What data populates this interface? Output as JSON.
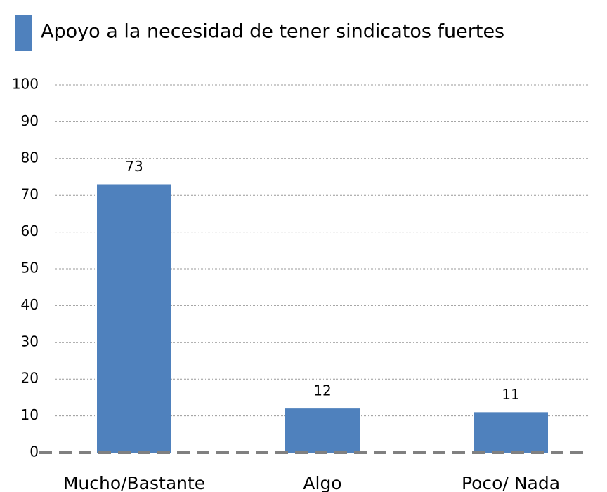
{
  "chart_data": {
    "type": "bar",
    "title": "Apoyo a la necesidad de tener sindicatos fuertes",
    "categories": [
      "Mucho/Bastante",
      "Algo",
      "Poco/ Nada"
    ],
    "values": [
      73,
      12,
      11
    ],
    "color": "#4f81bd",
    "ylim": [
      0,
      100
    ],
    "yticks": [
      0,
      10,
      20,
      30,
      40,
      50,
      60,
      70,
      80,
      90,
      100
    ],
    "grid": true
  }
}
